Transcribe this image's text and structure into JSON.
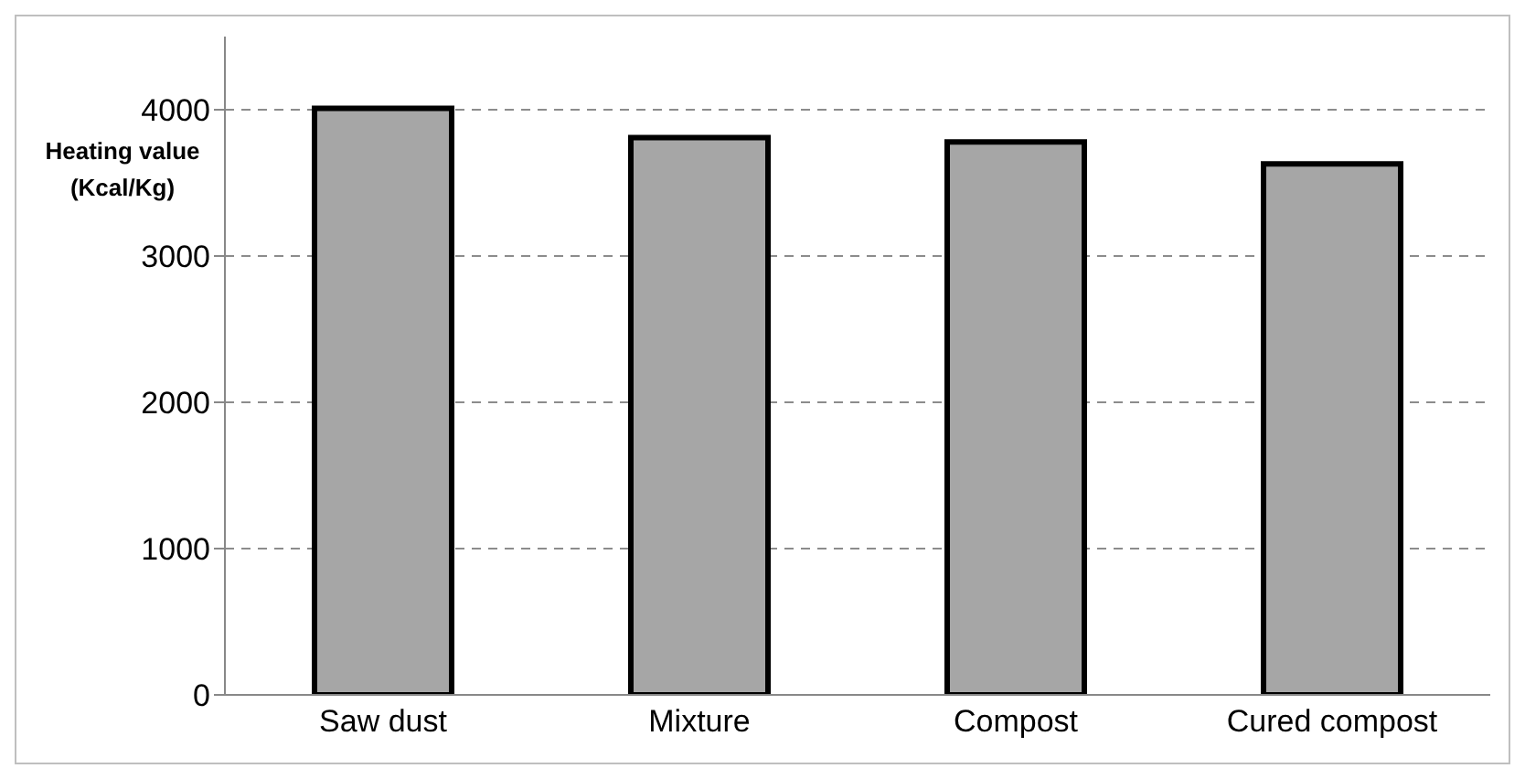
{
  "chart_data": {
    "type": "bar",
    "ylabel": "Heating value (Kcal/Kg)",
    "categories": [
      "Saw dust",
      "Mixture",
      "Compost",
      "Cured compost"
    ],
    "values": [
      4010,
      3810,
      3780,
      3630
    ],
    "color": "#a6a6a6",
    "ylim": [
      0,
      4500
    ],
    "yticks": [
      0,
      1000,
      2000,
      3000,
      4000
    ],
    "grid": "y"
  }
}
